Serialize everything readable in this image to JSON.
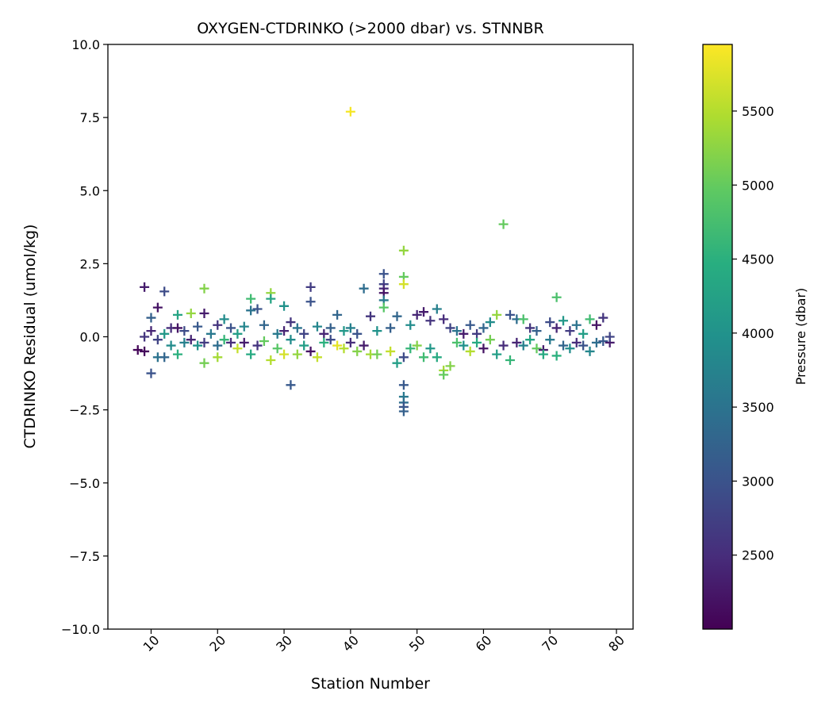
{
  "chart_data": {
    "type": "scatter",
    "title": "OXYGEN-CTDRINKO (>2000 dbar) vs. STNNBR",
    "xlabel": "Station Number",
    "ylabel": "CTDRINKO Residual (umol/kg)",
    "xlim": [
      3.5,
      82.5
    ],
    "ylim": [
      -10,
      10
    ],
    "x_ticks": [
      10,
      20,
      30,
      40,
      50,
      60,
      70,
      80
    ],
    "x_tick_labels": [
      "10",
      "20",
      "30",
      "40",
      "50",
      "60",
      "70",
      "80"
    ],
    "y_ticks": [
      -10,
      -7.5,
      -5,
      -2.5,
      0,
      2.5,
      5,
      7.5,
      10
    ],
    "y_tick_labels": [
      "−10.0",
      "−7.5",
      "−5.0",
      "−2.5",
      "0.0",
      "2.5",
      "5.0",
      "7.5",
      "10.0"
    ],
    "marker": "+",
    "grid": false,
    "colorbar": {
      "label": "Pressure (dbar)",
      "colormap": "viridis",
      "range": [
        2000,
        5950
      ],
      "ticks": [
        2500,
        3000,
        3500,
        4000,
        4500,
        5000,
        5500
      ],
      "tick_labels": [
        "2500",
        "3000",
        "3500",
        "4000",
        "4500",
        "5000",
        "5500"
      ]
    },
    "series": [
      {
        "points": [
          [
            8,
            -0.45,
            2050
          ],
          [
            9,
            -0.5,
            2100
          ],
          [
            9,
            1.7,
            2300
          ],
          [
            9,
            0.0,
            2600
          ],
          [
            10,
            -1.25,
            3000
          ],
          [
            10,
            0.65,
            3200
          ],
          [
            10,
            0.2,
            2400
          ],
          [
            11,
            1.0,
            2200
          ],
          [
            11,
            -0.7,
            3500
          ],
          [
            11,
            -0.1,
            2800
          ],
          [
            12,
            1.55,
            2900
          ],
          [
            12,
            -0.7,
            3300
          ],
          [
            12,
            0.1,
            4100
          ],
          [
            13,
            0.3,
            2500
          ],
          [
            13,
            -0.3,
            3900
          ],
          [
            14,
            0.75,
            4300
          ],
          [
            14,
            -0.6,
            4500
          ],
          [
            14,
            0.3,
            2200
          ],
          [
            15,
            -0.2,
            3700
          ],
          [
            15,
            0.2,
            2900
          ],
          [
            16,
            0.8,
            5300
          ],
          [
            16,
            -0.1,
            2400
          ],
          [
            17,
            0.35,
            3100
          ],
          [
            17,
            -0.3,
            4000
          ],
          [
            18,
            1.65,
            5200
          ],
          [
            18,
            0.8,
            2300
          ],
          [
            18,
            -0.9,
            5100
          ],
          [
            18,
            -0.2,
            2700
          ],
          [
            19,
            0.1,
            3600
          ],
          [
            20,
            -0.7,
            5400
          ],
          [
            20,
            0.4,
            2600
          ],
          [
            20,
            -0.3,
            3400
          ],
          [
            21,
            0.6,
            3900
          ],
          [
            21,
            -0.1,
            4600
          ],
          [
            22,
            0.3,
            3000
          ],
          [
            22,
            -0.2,
            2500
          ],
          [
            23,
            0.1,
            4200
          ],
          [
            23,
            -0.4,
            5600
          ],
          [
            24,
            0.35,
            3800
          ],
          [
            24,
            -0.2,
            2300
          ],
          [
            25,
            1.3,
            4700
          ],
          [
            25,
            0.9,
            3500
          ],
          [
            25,
            -0.6,
            4400
          ],
          [
            26,
            0.95,
            3000
          ],
          [
            26,
            -0.3,
            2600
          ],
          [
            27,
            0.4,
            3300
          ],
          [
            27,
            -0.15,
            5000
          ],
          [
            28,
            1.5,
            5300
          ],
          [
            28,
            1.3,
            4300
          ],
          [
            28,
            -0.8,
            5500
          ],
          [
            29,
            0.1,
            3600
          ],
          [
            29,
            -0.4,
            4900
          ],
          [
            30,
            1.05,
            4000
          ],
          [
            30,
            0.2,
            2400
          ],
          [
            30,
            -0.6,
            5700
          ],
          [
            31,
            -1.65,
            3100
          ],
          [
            31,
            0.5,
            2600
          ],
          [
            31,
            -0.1,
            3900
          ],
          [
            32,
            0.3,
            3500
          ],
          [
            32,
            -0.6,
            5300
          ],
          [
            33,
            0.1,
            2800
          ],
          [
            33,
            -0.3,
            4200
          ],
          [
            34,
            1.7,
            2700
          ],
          [
            34,
            1.2,
            3000
          ],
          [
            34,
            -0.5,
            2200
          ],
          [
            35,
            0.35,
            3800
          ],
          [
            35,
            -0.7,
            5600
          ],
          [
            36,
            0.1,
            2400
          ],
          [
            36,
            -0.2,
            4500
          ],
          [
            37,
            0.3,
            3200
          ],
          [
            37,
            -0.1,
            2900
          ],
          [
            38,
            0.75,
            3300
          ],
          [
            38,
            -0.3,
            5800
          ],
          [
            39,
            0.2,
            4100
          ],
          [
            39,
            -0.4,
            5500
          ],
          [
            40,
            7.7,
            5900
          ],
          [
            40,
            0.3,
            3700
          ],
          [
            40,
            -0.2,
            2500
          ],
          [
            41,
            0.1,
            3000
          ],
          [
            41,
            -0.5,
            5200
          ],
          [
            42,
            1.65,
            3400
          ],
          [
            42,
            -0.3,
            2300
          ],
          [
            43,
            0.7,
            2600
          ],
          [
            43,
            -0.6,
            5400
          ],
          [
            44,
            0.2,
            4000
          ],
          [
            44,
            -0.6,
            5100
          ],
          [
            45,
            2.15,
            3000
          ],
          [
            45,
            1.8,
            2800
          ],
          [
            45,
            1.65,
            2500
          ],
          [
            45,
            1.5,
            2200
          ],
          [
            45,
            1.25,
            3600
          ],
          [
            45,
            1.0,
            4900
          ],
          [
            46,
            0.3,
            3200
          ],
          [
            46,
            -0.5,
            5600
          ],
          [
            47,
            -0.9,
            4200
          ],
          [
            47,
            0.7,
            3300
          ],
          [
            48,
            2.95,
            5300
          ],
          [
            48,
            2.05,
            5000
          ],
          [
            48,
            1.8,
            5700
          ],
          [
            48,
            -0.7,
            2900
          ],
          [
            48,
            -1.65,
            3100
          ],
          [
            48,
            -2.05,
            3600
          ],
          [
            48,
            -2.25,
            3400
          ],
          [
            48,
            -2.4,
            3000
          ],
          [
            48,
            -2.55,
            3200
          ],
          [
            49,
            0.4,
            3900
          ],
          [
            49,
            -0.4,
            4600
          ],
          [
            50,
            0.75,
            2400
          ],
          [
            50,
            -0.3,
            5200
          ],
          [
            51,
            0.85,
            2300
          ],
          [
            51,
            -0.7,
            4700
          ],
          [
            52,
            0.55,
            2600
          ],
          [
            52,
            -0.4,
            4100
          ],
          [
            53,
            0.95,
            3700
          ],
          [
            53,
            -0.7,
            4400
          ],
          [
            54,
            -1.15,
            5400
          ],
          [
            54,
            -1.3,
            5000
          ],
          [
            54,
            0.6,
            2500
          ],
          [
            55,
            -1.0,
            5200
          ],
          [
            55,
            0.3,
            2800
          ],
          [
            56,
            0.2,
            3500
          ],
          [
            56,
            -0.2,
            4800
          ],
          [
            57,
            0.1,
            2300
          ],
          [
            57,
            -0.3,
            4000
          ],
          [
            58,
            0.4,
            3100
          ],
          [
            58,
            -0.5,
            5500
          ],
          [
            59,
            0.1,
            2700
          ],
          [
            59,
            -0.2,
            4400
          ],
          [
            60,
            0.3,
            3300
          ],
          [
            60,
            -0.4,
            2200
          ],
          [
            61,
            0.5,
            3900
          ],
          [
            61,
            -0.1,
            5100
          ],
          [
            62,
            0.75,
            5300
          ],
          [
            62,
            -0.6,
            4200
          ],
          [
            63,
            3.85,
            5000
          ],
          [
            63,
            -0.3,
            2500
          ],
          [
            64,
            0.75,
            3000
          ],
          [
            64,
            -0.8,
            4600
          ],
          [
            65,
            0.6,
            3400
          ],
          [
            65,
            -0.2,
            2400
          ],
          [
            66,
            0.6,
            4800
          ],
          [
            66,
            -0.3,
            3700
          ],
          [
            67,
            0.3,
            2600
          ],
          [
            67,
            -0.1,
            4300
          ],
          [
            68,
            0.2,
            3200
          ],
          [
            68,
            -0.4,
            5000
          ],
          [
            69,
            -0.45,
            2300
          ],
          [
            69,
            -0.6,
            4400
          ],
          [
            70,
            0.5,
            2900
          ],
          [
            70,
            -0.1,
            3600
          ],
          [
            71,
            1.35,
            4800
          ],
          [
            71,
            -0.65,
            4500
          ],
          [
            71,
            0.3,
            2400
          ],
          [
            72,
            0.55,
            4100
          ],
          [
            72,
            -0.3,
            3300
          ],
          [
            73,
            0.2,
            2700
          ],
          [
            73,
            -0.4,
            3900
          ],
          [
            74,
            0.4,
            3500
          ],
          [
            74,
            -0.2,
            2500
          ],
          [
            75,
            0.1,
            4200
          ],
          [
            75,
            -0.3,
            3000
          ],
          [
            76,
            0.6,
            4700
          ],
          [
            76,
            -0.5,
            3800
          ],
          [
            77,
            0.4,
            2200
          ],
          [
            77,
            -0.2,
            3400
          ],
          [
            78,
            0.65,
            2600
          ],
          [
            78,
            -0.15,
            3100
          ],
          [
            79,
            -0.2,
            2300
          ],
          [
            79,
            0.0,
            2800
          ]
        ]
      }
    ]
  }
}
